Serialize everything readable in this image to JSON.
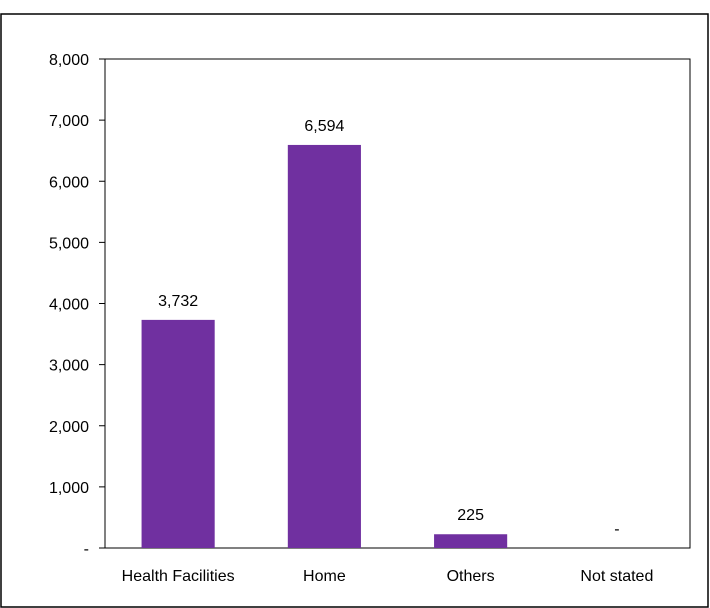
{
  "chart_data": {
    "type": "bar",
    "categories": [
      "Health Facilities",
      "Home",
      "Others",
      "Not stated"
    ],
    "values": [
      3732,
      6594,
      225,
      0
    ],
    "data_labels": [
      "3,732",
      "6,594",
      "225",
      "-"
    ],
    "title": "",
    "xlabel": "",
    "ylabel": "",
    "ylim": [
      0,
      8000
    ],
    "y_ticks": [
      0,
      1000,
      2000,
      3000,
      4000,
      5000,
      6000,
      7000,
      8000
    ],
    "y_tick_labels": [
      "-",
      "1,000",
      "2,000",
      "3,000",
      "4,000",
      "5,000",
      "6,000",
      "7,000",
      "8,000"
    ],
    "grid": false,
    "legend": "none",
    "bar_color": "#7030A0"
  }
}
